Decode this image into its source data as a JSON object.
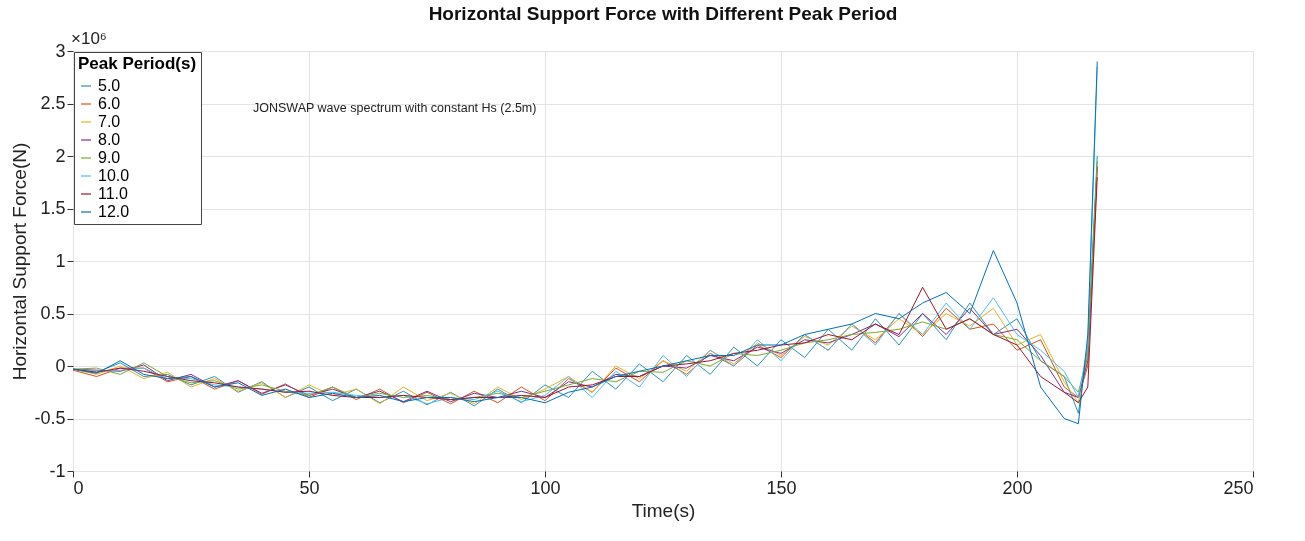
{
  "chart_data": {
    "type": "line",
    "title": "Horizontal Support Force with Different Peak Period",
    "xlabel": "Time(s)",
    "ylabel": "Horizontal Support Force(N)",
    "legend_title": "Peak Period(s)",
    "legend": "top left",
    "grid": true,
    "line_style": "solid",
    "xlim": [
      0,
      250
    ],
    "xticks": [
      0,
      50,
      100,
      150,
      200,
      250
    ],
    "ylim": [
      -1,
      3
    ],
    "yticks": [
      -1,
      -0.5,
      0,
      0.5,
      1,
      1.5,
      2,
      2.5,
      3
    ],
    "annotations": [
      "×10⁶",
      "JONSWAP wave spectrum with constant Hs (2.5m)"
    ],
    "x": [
      0,
      5,
      10,
      15,
      20,
      25,
      30,
      35,
      40,
      45,
      50,
      55,
      60,
      65,
      70,
      75,
      80,
      85,
      90,
      95,
      100,
      105,
      110,
      115,
      120,
      125,
      130,
      135,
      140,
      145,
      150,
      155,
      160,
      165,
      170,
      175,
      180,
      185,
      190,
      195,
      200,
      205,
      210,
      213,
      215,
      217
    ],
    "series": [
      {
        "name": "5.0",
        "color": "#2a93b8",
        "values": [
          -0.03,
          -0.06,
          0.03,
          -0.1,
          -0.08,
          -0.18,
          -0.1,
          -0.25,
          -0.15,
          -0.3,
          -0.2,
          -0.33,
          -0.22,
          -0.35,
          -0.24,
          -0.37,
          -0.25,
          -0.38,
          -0.22,
          -0.35,
          -0.18,
          -0.3,
          -0.05,
          -0.22,
          0.02,
          -0.15,
          0.1,
          -0.08,
          0.18,
          0.0,
          0.25,
          0.08,
          0.35,
          0.15,
          0.45,
          0.2,
          0.5,
          0.25,
          0.6,
          0.3,
          0.45,
          0.05,
          -0.1,
          -0.45,
          0.2,
          2.0
        ]
      },
      {
        "name": "6.0",
        "color": "#d95319",
        "values": [
          -0.04,
          -0.1,
          -0.02,
          -0.02,
          -0.15,
          -0.1,
          -0.22,
          -0.14,
          -0.27,
          -0.17,
          -0.3,
          -0.2,
          -0.32,
          -0.22,
          -0.35,
          -0.25,
          -0.36,
          -0.24,
          -0.35,
          -0.2,
          -0.33,
          -0.12,
          -0.25,
          -0.02,
          -0.15,
          0.05,
          -0.08,
          0.12,
          0.0,
          0.2,
          0.08,
          0.3,
          0.15,
          0.4,
          0.22,
          0.5,
          0.28,
          0.55,
          0.35,
          0.4,
          0.15,
          0.25,
          -0.2,
          -0.3,
          0.0,
          1.9
        ]
      },
      {
        "name": "7.0",
        "color": "#edb120",
        "values": [
          -0.03,
          -0.08,
          0.0,
          -0.12,
          -0.06,
          -0.2,
          -0.12,
          -0.24,
          -0.16,
          -0.3,
          -0.18,
          -0.28,
          -0.22,
          -0.36,
          -0.2,
          -0.33,
          -0.26,
          -0.36,
          -0.2,
          -0.32,
          -0.22,
          -0.1,
          -0.25,
          0.0,
          -0.12,
          0.05,
          -0.05,
          0.15,
          0.02,
          0.22,
          0.1,
          0.28,
          0.2,
          0.38,
          0.25,
          0.45,
          0.3,
          0.5,
          0.38,
          0.55,
          0.2,
          0.3,
          -0.15,
          -0.35,
          0.1,
          1.9
        ]
      },
      {
        "name": "8.0",
        "color": "#7e2f8e",
        "values": [
          -0.03,
          -0.04,
          -0.05,
          0.01,
          -0.14,
          -0.08,
          -0.2,
          -0.14,
          -0.26,
          -0.18,
          -0.28,
          -0.22,
          -0.3,
          -0.24,
          -0.34,
          -0.24,
          -0.34,
          -0.26,
          -0.3,
          -0.24,
          -0.3,
          -0.15,
          -0.2,
          -0.08,
          -0.1,
          0.0,
          -0.02,
          0.1,
          0.05,
          0.18,
          0.12,
          0.25,
          0.22,
          0.3,
          0.4,
          0.28,
          0.5,
          0.3,
          0.55,
          0.3,
          0.35,
          0.1,
          -0.25,
          -0.3,
          0.05,
          1.9
        ]
      },
      {
        "name": "9.0",
        "color": "#77ac30",
        "values": [
          -0.03,
          -0.02,
          -0.08,
          0.03,
          -0.1,
          -0.16,
          -0.14,
          -0.22,
          -0.18,
          -0.24,
          -0.28,
          -0.2,
          -0.3,
          -0.26,
          -0.3,
          -0.28,
          -0.32,
          -0.3,
          -0.26,
          -0.3,
          -0.24,
          -0.18,
          -0.12,
          -0.15,
          -0.05,
          -0.06,
          0.05,
          0.0,
          0.12,
          0.1,
          0.15,
          0.22,
          0.25,
          0.3,
          0.32,
          0.35,
          0.42,
          0.35,
          0.45,
          0.3,
          0.25,
          0.05,
          -0.1,
          -0.25,
          0.1,
          1.95
        ]
      },
      {
        "name": "10.0",
        "color": "#4dbeee",
        "values": [
          -0.03,
          -0.05,
          -0.04,
          -0.02,
          -0.12,
          -0.12,
          -0.18,
          -0.2,
          -0.22,
          -0.25,
          -0.26,
          -0.25,
          -0.28,
          -0.3,
          -0.28,
          -0.36,
          -0.3,
          -0.32,
          -0.24,
          -0.34,
          -0.28,
          -0.1,
          -0.3,
          -0.05,
          -0.2,
          0.1,
          -0.1,
          0.15,
          0.0,
          0.25,
          0.05,
          0.3,
          0.15,
          0.4,
          0.2,
          0.5,
          0.3,
          0.6,
          0.35,
          0.65,
          0.3,
          0.15,
          -0.05,
          -0.3,
          0.2,
          2.85
        ]
      },
      {
        "name": "11.0",
        "color": "#a2142f",
        "values": [
          -0.03,
          -0.06,
          -0.02,
          -0.05,
          -0.1,
          -0.14,
          -0.16,
          -0.2,
          -0.22,
          -0.25,
          -0.24,
          -0.28,
          -0.3,
          -0.3,
          -0.28,
          -0.3,
          -0.32,
          -0.3,
          -0.3,
          -0.28,
          -0.3,
          -0.2,
          -0.18,
          -0.1,
          -0.1,
          0.0,
          0.02,
          0.05,
          0.12,
          0.15,
          0.2,
          0.22,
          0.3,
          0.25,
          0.4,
          0.3,
          0.75,
          0.35,
          0.45,
          0.3,
          0.2,
          -0.1,
          -0.25,
          -0.35,
          -0.2,
          1.8
        ]
      },
      {
        "name": "12.0",
        "color": "#0072bd",
        "values": [
          -0.03,
          -0.07,
          0.05,
          -0.08,
          -0.12,
          -0.1,
          -0.2,
          -0.16,
          -0.28,
          -0.22,
          -0.3,
          -0.26,
          -0.3,
          -0.28,
          -0.34,
          -0.3,
          -0.3,
          -0.34,
          -0.3,
          -0.3,
          -0.35,
          -0.25,
          -0.2,
          -0.1,
          -0.05,
          0.0,
          0.05,
          0.1,
          0.1,
          0.2,
          0.2,
          0.3,
          0.35,
          0.4,
          0.5,
          0.45,
          0.6,
          0.7,
          0.5,
          1.1,
          0.6,
          -0.2,
          -0.5,
          -0.55,
          0.3,
          2.9
        ]
      }
    ]
  }
}
